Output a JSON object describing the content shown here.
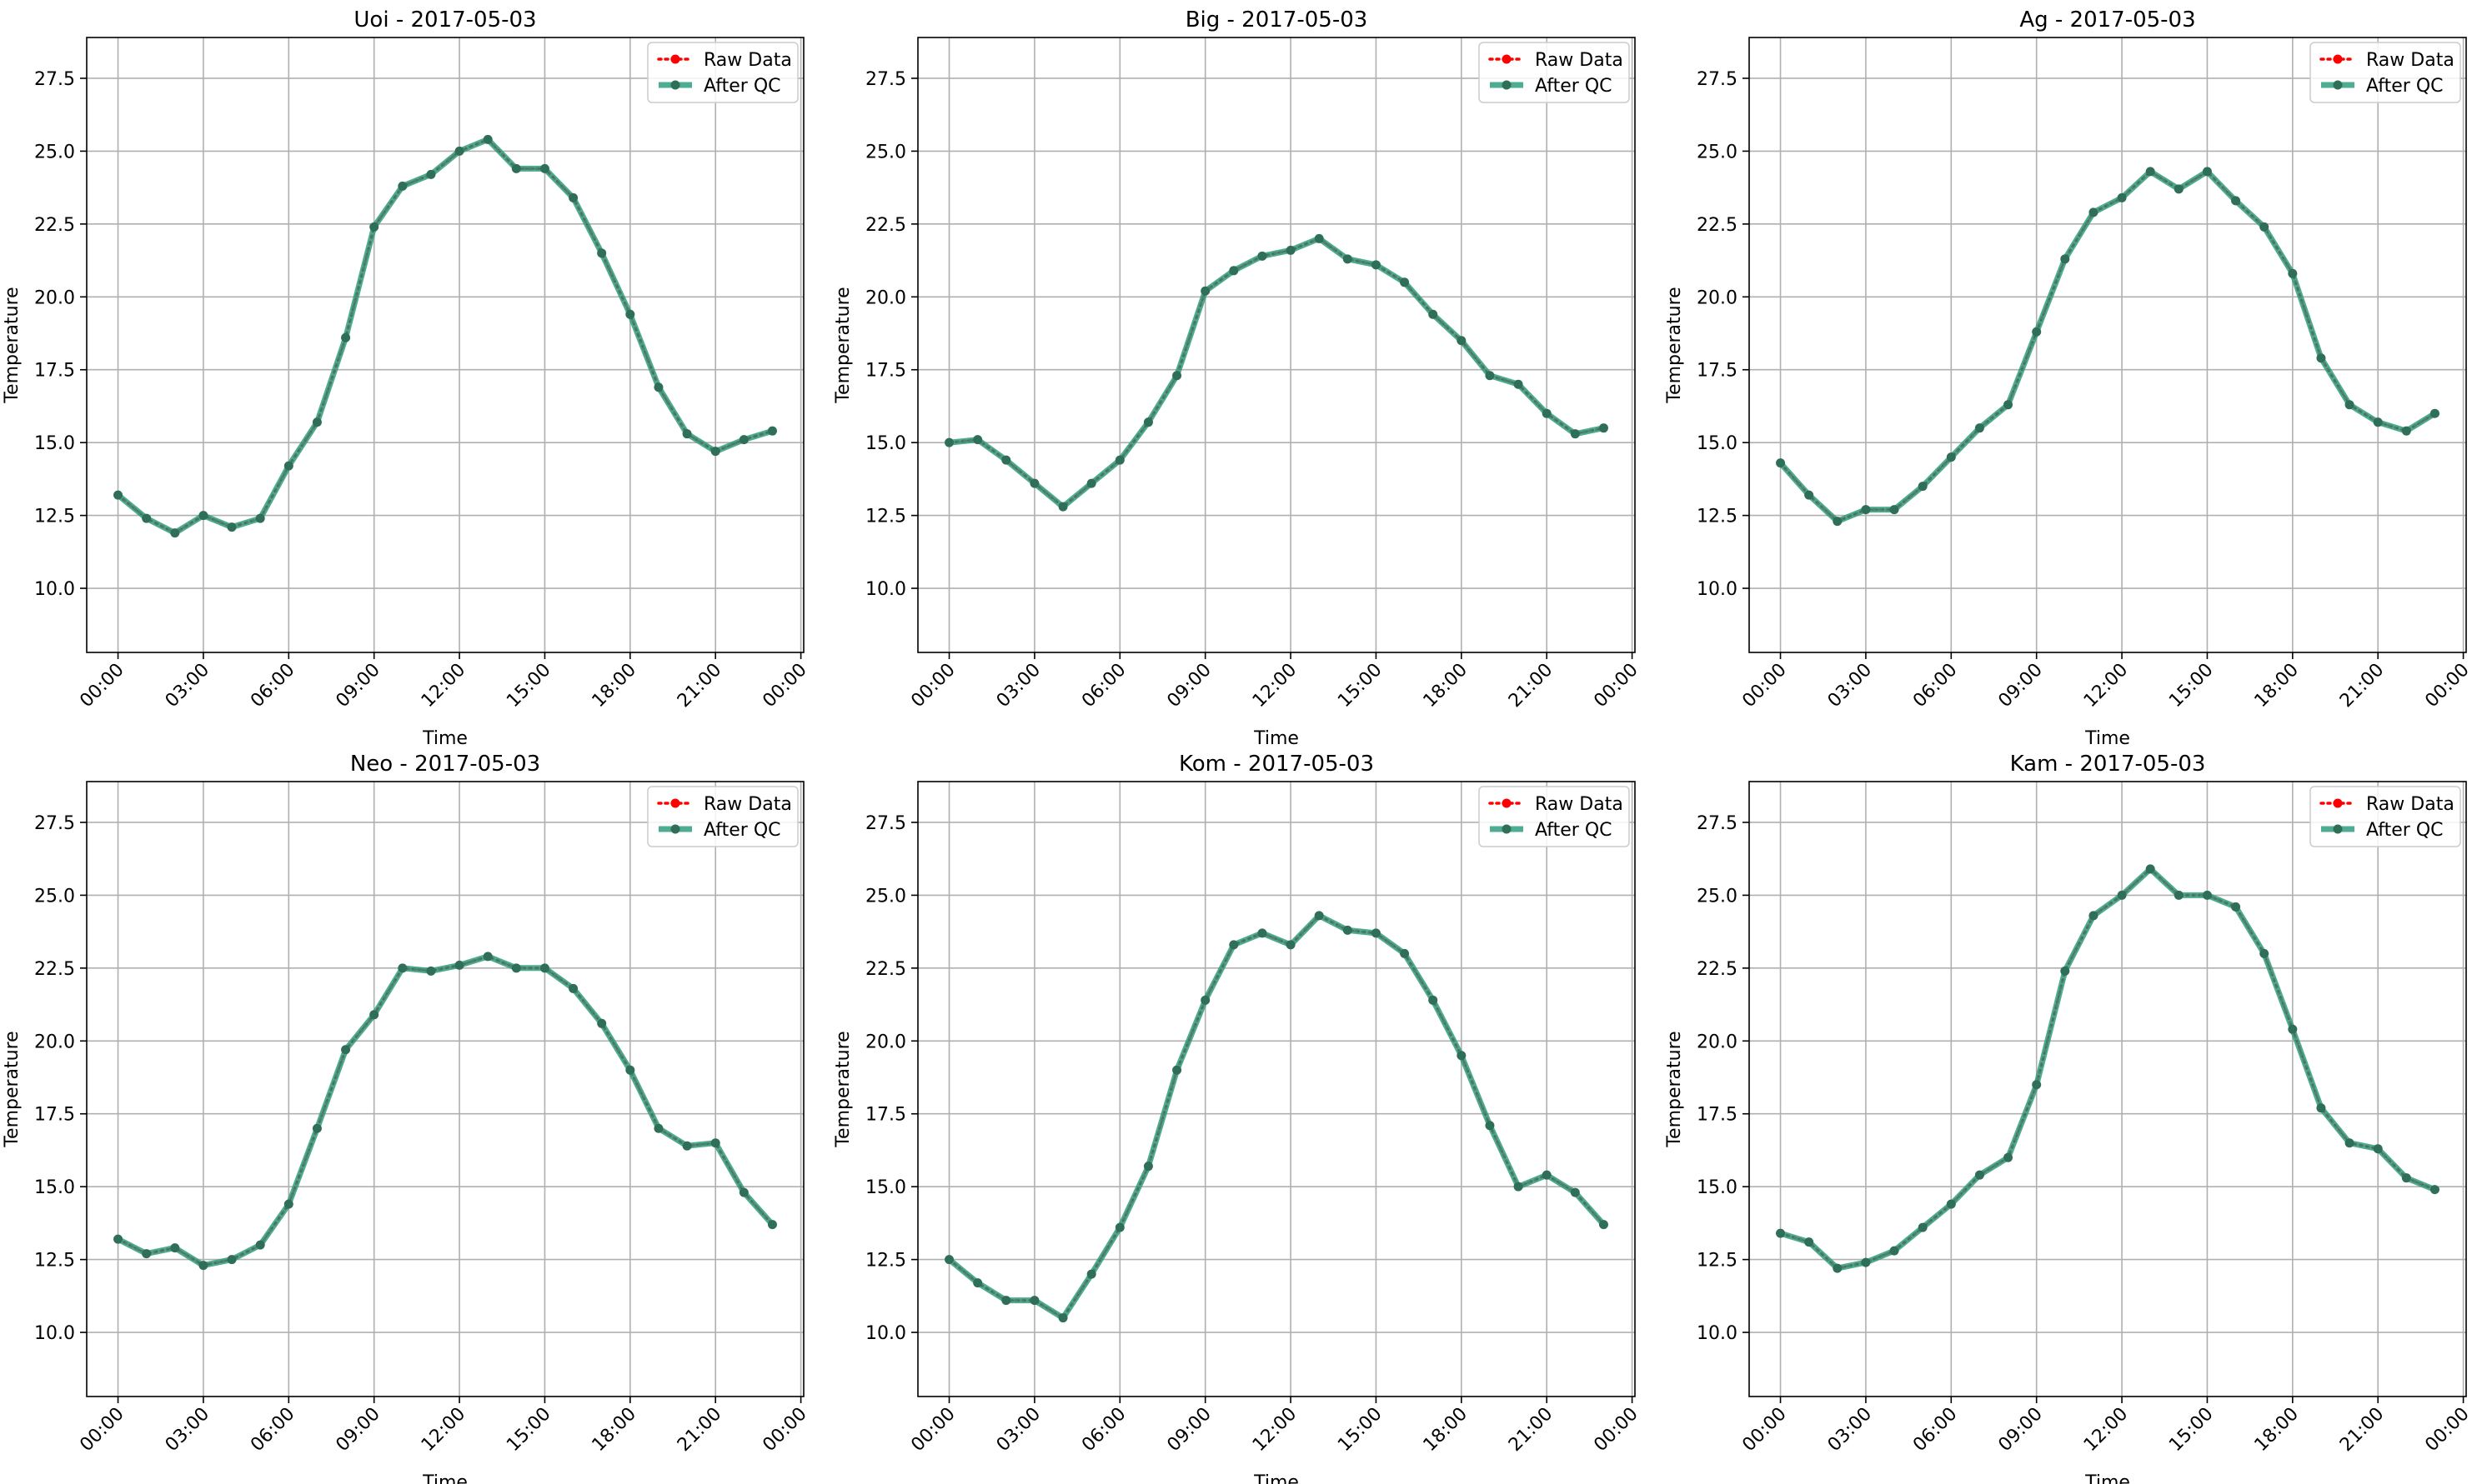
{
  "colors": {
    "raw": "#ff0000",
    "qc": "#2e9e7e",
    "grid": "#b0b0b0",
    "marker": "#2f6f57"
  },
  "legend": {
    "raw_label": "Raw Data",
    "qc_label": "After QC"
  },
  "chart_data": [
    {
      "type": "line",
      "title": "Uoi - 2017-05-03",
      "xlabel": "Time",
      "ylabel": "Temperature",
      "ylim": [
        7.8,
        28.9
      ],
      "xlim": [
        -1.1,
        24.1
      ],
      "yticks": [
        "10.0",
        "12.5",
        "15.0",
        "17.5",
        "20.0",
        "22.5",
        "25.0",
        "27.5"
      ],
      "xticks": [
        "00:00",
        "03:00",
        "06:00",
        "09:00",
        "12:00",
        "15:00",
        "18:00",
        "21:00",
        "00:00"
      ],
      "grid": true,
      "legend_position": "upper right",
      "x": [
        0,
        1,
        2,
        3,
        4,
        5,
        6,
        7,
        8,
        9,
        10,
        11,
        12,
        13,
        14,
        15,
        16,
        17,
        18,
        19,
        20,
        21,
        22,
        23
      ],
      "series": [
        {
          "name": "Raw Data",
          "values": [
            13.2,
            12.4,
            11.9,
            12.5,
            12.1,
            12.4,
            14.2,
            15.7,
            18.6,
            22.4,
            23.8,
            24.2,
            25.0,
            25.4,
            24.4,
            24.4,
            23.4,
            21.5,
            19.4,
            16.9,
            15.3,
            14.7,
            15.1,
            15.4
          ]
        },
        {
          "name": "After QC",
          "values": [
            13.2,
            12.4,
            11.9,
            12.5,
            12.1,
            12.4,
            14.2,
            15.7,
            18.6,
            22.4,
            23.8,
            24.2,
            25.0,
            25.4,
            24.4,
            24.4,
            23.4,
            21.5,
            19.4,
            16.9,
            15.3,
            14.7,
            15.1,
            15.4
          ]
        }
      ]
    },
    {
      "type": "line",
      "title": "Big - 2017-05-03",
      "xlabel": "Time",
      "ylabel": "Temperature",
      "ylim": [
        7.8,
        28.9
      ],
      "xlim": [
        -1.1,
        24.1
      ],
      "yticks": [
        "10.0",
        "12.5",
        "15.0",
        "17.5",
        "20.0",
        "22.5",
        "25.0",
        "27.5"
      ],
      "xticks": [
        "00:00",
        "03:00",
        "06:00",
        "09:00",
        "12:00",
        "15:00",
        "18:00",
        "21:00",
        "00:00"
      ],
      "grid": true,
      "legend_position": "upper right",
      "x": [
        0,
        1,
        2,
        3,
        4,
        5,
        6,
        7,
        8,
        9,
        10,
        11,
        12,
        13,
        14,
        15,
        16,
        17,
        18,
        19,
        20,
        21,
        22,
        23
      ],
      "series": [
        {
          "name": "Raw Data",
          "values": [
            15.0,
            15.1,
            14.4,
            13.6,
            12.8,
            13.6,
            14.4,
            15.7,
            17.3,
            20.2,
            20.9,
            21.4,
            21.6,
            22.0,
            21.3,
            21.1,
            20.5,
            19.4,
            18.5,
            17.3,
            17.0,
            16.0,
            15.3,
            15.5
          ]
        },
        {
          "name": "After QC",
          "values": [
            15.0,
            15.1,
            14.4,
            13.6,
            12.8,
            13.6,
            14.4,
            15.7,
            17.3,
            20.2,
            20.9,
            21.4,
            21.6,
            22.0,
            21.3,
            21.1,
            20.5,
            19.4,
            18.5,
            17.3,
            17.0,
            16.0,
            15.3,
            15.5
          ]
        }
      ]
    },
    {
      "type": "line",
      "title": "Ag - 2017-05-03",
      "xlabel": "Time",
      "ylabel": "Temperature",
      "ylim": [
        7.8,
        28.9
      ],
      "xlim": [
        -1.1,
        24.1
      ],
      "yticks": [
        "10.0",
        "12.5",
        "15.0",
        "17.5",
        "20.0",
        "22.5",
        "25.0",
        "27.5"
      ],
      "xticks": [
        "00:00",
        "03:00",
        "06:00",
        "09:00",
        "12:00",
        "15:00",
        "18:00",
        "21:00",
        "00:00"
      ],
      "grid": true,
      "legend_position": "upper right",
      "x": [
        0,
        1,
        2,
        3,
        4,
        5,
        6,
        7,
        8,
        9,
        10,
        11,
        12,
        13,
        14,
        15,
        16,
        17,
        18,
        19,
        20,
        21,
        22,
        23
      ],
      "series": [
        {
          "name": "Raw Data",
          "values": [
            14.3,
            13.2,
            12.3,
            12.7,
            12.7,
            13.5,
            14.5,
            15.5,
            16.3,
            18.8,
            21.3,
            22.9,
            23.4,
            24.3,
            23.7,
            24.3,
            23.3,
            22.4,
            20.8,
            17.9,
            16.3,
            15.7,
            15.4,
            16.0
          ]
        },
        {
          "name": "After QC",
          "values": [
            14.3,
            13.2,
            12.3,
            12.7,
            12.7,
            13.5,
            14.5,
            15.5,
            16.3,
            18.8,
            21.3,
            22.9,
            23.4,
            24.3,
            23.7,
            24.3,
            23.3,
            22.4,
            20.8,
            17.9,
            16.3,
            15.7,
            15.4,
            16.0
          ]
        }
      ]
    },
    {
      "type": "line",
      "title": "Neo - 2017-05-03",
      "xlabel": "Time",
      "ylabel": "Temperature",
      "ylim": [
        7.8,
        28.9
      ],
      "xlim": [
        -1.1,
        24.1
      ],
      "yticks": [
        "10.0",
        "12.5",
        "15.0",
        "17.5",
        "20.0",
        "22.5",
        "25.0",
        "27.5"
      ],
      "xticks": [
        "00:00",
        "03:00",
        "06:00",
        "09:00",
        "12:00",
        "15:00",
        "18:00",
        "21:00",
        "00:00"
      ],
      "grid": true,
      "legend_position": "upper right",
      "x": [
        0,
        1,
        2,
        3,
        4,
        5,
        6,
        7,
        8,
        9,
        10,
        11,
        12,
        13,
        14,
        15,
        16,
        17,
        18,
        19,
        20,
        21,
        22,
        23
      ],
      "series": [
        {
          "name": "Raw Data",
          "values": [
            13.2,
            12.7,
            12.9,
            12.3,
            12.5,
            13.0,
            14.4,
            17.0,
            19.7,
            20.9,
            22.5,
            22.4,
            22.6,
            22.9,
            22.5,
            22.5,
            21.8,
            20.6,
            19.0,
            17.0,
            16.4,
            16.5,
            14.8,
            13.7
          ]
        },
        {
          "name": "After QC",
          "values": [
            13.2,
            12.7,
            12.9,
            12.3,
            12.5,
            13.0,
            14.4,
            17.0,
            19.7,
            20.9,
            22.5,
            22.4,
            22.6,
            22.9,
            22.5,
            22.5,
            21.8,
            20.6,
            19.0,
            17.0,
            16.4,
            16.5,
            14.8,
            13.7
          ]
        }
      ]
    },
    {
      "type": "line",
      "title": "Kom - 2017-05-03",
      "xlabel": "Time",
      "ylabel": "Temperature",
      "ylim": [
        7.8,
        28.9
      ],
      "xlim": [
        -1.1,
        24.1
      ],
      "yticks": [
        "10.0",
        "12.5",
        "15.0",
        "17.5",
        "20.0",
        "22.5",
        "25.0",
        "27.5"
      ],
      "xticks": [
        "00:00",
        "03:00",
        "06:00",
        "09:00",
        "12:00",
        "15:00",
        "18:00",
        "21:00",
        "00:00"
      ],
      "grid": true,
      "legend_position": "upper right",
      "x": [
        0,
        1,
        2,
        3,
        4,
        5,
        6,
        7,
        8,
        9,
        10,
        11,
        12,
        13,
        14,
        15,
        16,
        17,
        18,
        19,
        20,
        21,
        22,
        23
      ],
      "series": [
        {
          "name": "Raw Data",
          "values": [
            12.5,
            11.7,
            11.1,
            11.1,
            10.5,
            12.0,
            13.6,
            15.7,
            19.0,
            21.4,
            23.3,
            23.7,
            23.3,
            24.3,
            23.8,
            23.7,
            23.0,
            21.4,
            19.5,
            17.1,
            15.0,
            15.4,
            14.8,
            13.7
          ]
        },
        {
          "name": "After QC",
          "values": [
            12.5,
            11.7,
            11.1,
            11.1,
            10.5,
            12.0,
            13.6,
            15.7,
            19.0,
            21.4,
            23.3,
            23.7,
            23.3,
            24.3,
            23.8,
            23.7,
            23.0,
            21.4,
            19.5,
            17.1,
            15.0,
            15.4,
            14.8,
            13.7
          ]
        }
      ]
    },
    {
      "type": "line",
      "title": "Kam - 2017-05-03",
      "xlabel": "Time",
      "ylabel": "Temperature",
      "ylim": [
        7.8,
        28.9
      ],
      "xlim": [
        -1.1,
        24.1
      ],
      "yticks": [
        "10.0",
        "12.5",
        "15.0",
        "17.5",
        "20.0",
        "22.5",
        "25.0",
        "27.5"
      ],
      "xticks": [
        "00:00",
        "03:00",
        "06:00",
        "09:00",
        "12:00",
        "15:00",
        "18:00",
        "21:00",
        "00:00"
      ],
      "grid": true,
      "legend_position": "upper right",
      "x": [
        0,
        1,
        2,
        3,
        4,
        5,
        6,
        7,
        8,
        9,
        10,
        11,
        12,
        13,
        14,
        15,
        16,
        17,
        18,
        19,
        20,
        21,
        22,
        23
      ],
      "series": [
        {
          "name": "Raw Data",
          "values": [
            13.4,
            13.1,
            12.2,
            12.4,
            12.8,
            13.6,
            14.4,
            15.4,
            16.0,
            18.5,
            22.4,
            24.3,
            25.0,
            25.9,
            25.0,
            25.0,
            24.6,
            23.0,
            20.4,
            17.7,
            16.5,
            16.3,
            15.3,
            14.9
          ]
        },
        {
          "name": "After QC",
          "values": [
            13.4,
            13.1,
            12.2,
            12.4,
            12.8,
            13.6,
            14.4,
            15.4,
            16.0,
            18.5,
            22.4,
            24.3,
            25.0,
            25.9,
            25.0,
            25.0,
            24.6,
            23.0,
            20.4,
            17.7,
            16.5,
            16.3,
            15.3,
            14.9
          ]
        }
      ]
    }
  ]
}
